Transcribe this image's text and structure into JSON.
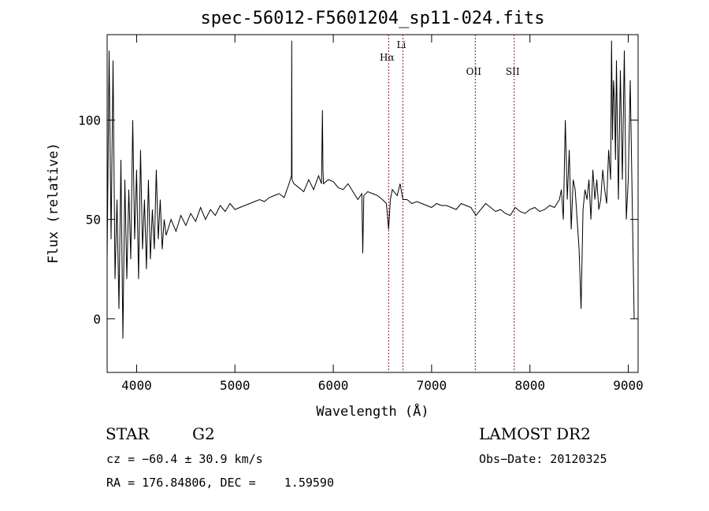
{
  "chart_data": {
    "type": "line",
    "title": "spec-56012-F5601204_sp11-024.fits",
    "xlabel": "Wavelength (Å)",
    "ylabel": "Flux (relative)",
    "xlim": [
      3700,
      9100
    ],
    "ylim": [
      -27,
      143
    ],
    "xticks": [
      4000,
      5000,
      6000,
      7000,
      8000,
      9000
    ],
    "yticks": [
      0,
      50,
      100
    ],
    "grid": false,
    "legend": "none",
    "line_color": "#000000",
    "marker_color": "#8b1a1a",
    "line_markers": [
      {
        "label": "Hα",
        "x": 6563
      },
      {
        "label": "Li",
        "x": 6708
      },
      {
        "label": "OII",
        "x": 7444
      },
      {
        "label": "SII",
        "x": 7840
      }
    ],
    "spectrum": {
      "x": [
        3700,
        3720,
        3740,
        3760,
        3780,
        3800,
        3820,
        3840,
        3860,
        3880,
        3900,
        3920,
        3940,
        3960,
        3980,
        4000,
        4020,
        4040,
        4060,
        4080,
        4100,
        4120,
        4140,
        4160,
        4180,
        4200,
        4220,
        4240,
        4260,
        4280,
        4300,
        4350,
        4400,
        4450,
        4500,
        4550,
        4600,
        4650,
        4700,
        4750,
        4800,
        4850,
        4900,
        4950,
        5000,
        5050,
        5100,
        5150,
        5200,
        5250,
        5300,
        5350,
        5400,
        5450,
        5500,
        5550,
        5575,
        5577,
        5580,
        5600,
        5650,
        5700,
        5750,
        5800,
        5850,
        5880,
        5890,
        5895,
        5900,
        5950,
        6000,
        6050,
        6100,
        6150,
        6200,
        6250,
        6290,
        6300,
        6310,
        6350,
        6400,
        6450,
        6500,
        6540,
        6563,
        6580,
        6600,
        6650,
        6680,
        6708,
        6750,
        6800,
        6850,
        6900,
        6950,
        7000,
        7050,
        7100,
        7150,
        7200,
        7250,
        7300,
        7350,
        7400,
        7450,
        7500,
        7550,
        7600,
        7650,
        7700,
        7750,
        7800,
        7850,
        7900,
        7950,
        8000,
        8050,
        8100,
        8150,
        8200,
        8250,
        8300,
        8320,
        8340,
        8360,
        8380,
        8400,
        8420,
        8440,
        8460,
        8480,
        8500,
        8520,
        8540,
        8560,
        8580,
        8600,
        8620,
        8640,
        8660,
        8680,
        8700,
        8720,
        8740,
        8760,
        8780,
        8800,
        8820,
        8830,
        8840,
        8850,
        8860,
        8870,
        8880,
        8900,
        8920,
        8940,
        8960,
        8980,
        9000,
        9020,
        9040,
        9060
      ],
      "y": [
        30,
        135,
        40,
        130,
        20,
        60,
        5,
        80,
        -10,
        70,
        20,
        65,
        30,
        100,
        40,
        75,
        20,
        85,
        35,
        60,
        25,
        70,
        30,
        55,
        35,
        75,
        40,
        60,
        35,
        50,
        42,
        50,
        44,
        52,
        47,
        53,
        49,
        56,
        50,
        55,
        52,
        57,
        54,
        58,
        55,
        56,
        57,
        58,
        59,
        60,
        59,
        61,
        62,
        63,
        61,
        68,
        72,
        140,
        70,
        68,
        66,
        64,
        70,
        65,
        72,
        68,
        105,
        75,
        68,
        70,
        69,
        66,
        65,
        68,
        64,
        60,
        63,
        33,
        62,
        64,
        63,
        62,
        60,
        58,
        45,
        60,
        65,
        62,
        68,
        60,
        60,
        58,
        59,
        58,
        57,
        56,
        58,
        57,
        57,
        56,
        55,
        58,
        57,
        56,
        52,
        55,
        58,
        56,
        54,
        55,
        53,
        52,
        56,
        54,
        53,
        55,
        56,
        54,
        55,
        57,
        56,
        60,
        65,
        50,
        100,
        60,
        85,
        45,
        70,
        65,
        50,
        35,
        5,
        55,
        65,
        60,
        70,
        50,
        75,
        60,
        70,
        55,
        60,
        75,
        65,
        58,
        85,
        70,
        140,
        90,
        120,
        110,
        80,
        130,
        60,
        125,
        70,
        135,
        50,
        70,
        120,
        60,
        0
      ]
    }
  },
  "info": {
    "object_class": "STAR",
    "subclass": "G2",
    "survey": "LAMOST DR2",
    "redshift": "cz = −60.4 ± 30.9 km/s",
    "obs_date": "Obs−Date: 20120325",
    "coords": "RA = 176.84806, DEC =    1.59590"
  }
}
